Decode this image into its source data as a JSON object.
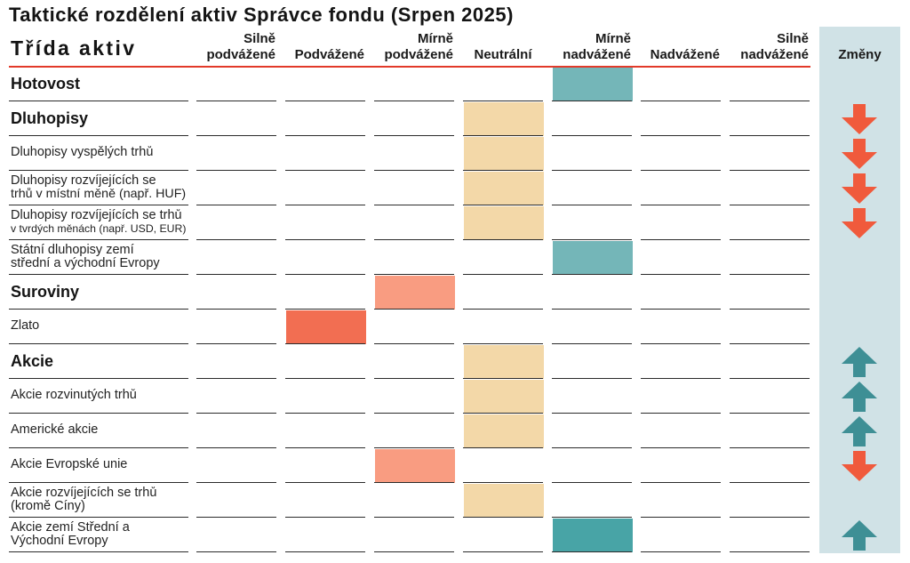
{
  "chart_data": {
    "type": "table",
    "title": "Taktické rozdělení aktiv Správce fondu (Srpen 2025)",
    "row_header": "Třída aktiv",
    "columns": [
      "Silně podvážené",
      "Podvážené",
      "Mírně podvážené",
      "Neutrální",
      "Mírně nadvážené",
      "Nadvážené",
      "Silně nadvážené"
    ],
    "changes_header": "Změny",
    "rows": [
      {
        "label": [
          "Hotovost"
        ],
        "is_category": true,
        "rating": 1,
        "fill": "#74b6b8",
        "change": 0
      },
      {
        "label": [
          "Dluhopisy"
        ],
        "is_category": true,
        "rating": 0,
        "fill": "#f3d8a8",
        "change": -1
      },
      {
        "label": [
          "Dluhopisy vyspělých trhů"
        ],
        "is_category": false,
        "rating": 0,
        "fill": "#f3d8a8",
        "change": -1
      },
      {
        "label": [
          "Dluhopisy rozvíjejících se",
          "trhů v místní měně (např. HUF)"
        ],
        "is_category": false,
        "rating": 0,
        "fill": "#f3d8a8",
        "change": -1
      },
      {
        "label": [
          "Dluhopisy rozvíjejících se trhů",
          "v tvrdých měnách (např. USD, EUR)"
        ],
        "is_category": false,
        "rating": 0,
        "fill": "#f3d8a8",
        "change": -1
      },
      {
        "label": [
          "Státní dluhopisy zemí",
          "střední a východní Evropy"
        ],
        "is_category": false,
        "rating": 1,
        "fill": "#74b6b8",
        "change": 0
      },
      {
        "label": [
          "Suroviny"
        ],
        "is_category": true,
        "rating": -1,
        "fill": "#f99c81",
        "change": 0
      },
      {
        "label": [
          "Zlato"
        ],
        "is_category": false,
        "rating": -2,
        "fill": "#f26e52",
        "change": 0
      },
      {
        "label": [
          "Akcie"
        ],
        "is_category": true,
        "rating": 0,
        "fill": "#f3d8a8",
        "change": 1
      },
      {
        "label": [
          "Akcie rozvinutých trhů"
        ],
        "is_category": false,
        "rating": 0,
        "fill": "#f3d8a8",
        "change": 1
      },
      {
        "label": [
          "Americké akcie"
        ],
        "is_category": false,
        "rating": 0,
        "fill": "#f3d8a8",
        "change": 1
      },
      {
        "label": [
          "Akcie Evropské unie"
        ],
        "is_category": false,
        "rating": -1,
        "fill": "#f99c81",
        "change": -1
      },
      {
        "label": [
          "Akcie rozvíjejících se trhů",
          "(kromě Číny)"
        ],
        "is_category": false,
        "rating": 0,
        "fill": "#f3d8a8",
        "change": 0
      },
      {
        "label": [
          "Akcie zemí Střední a",
          "Východní Evropy"
        ],
        "is_category": false,
        "rating": 1,
        "fill": "#48a4a6",
        "change": 1
      }
    ]
  },
  "colors": {
    "header_rule": "#e23a2a",
    "changes_column": "#d0e2e6",
    "row_rule": "#2b2b2b",
    "arrow_down": "#f05a3c",
    "arrow_up": "#3e8f95"
  }
}
